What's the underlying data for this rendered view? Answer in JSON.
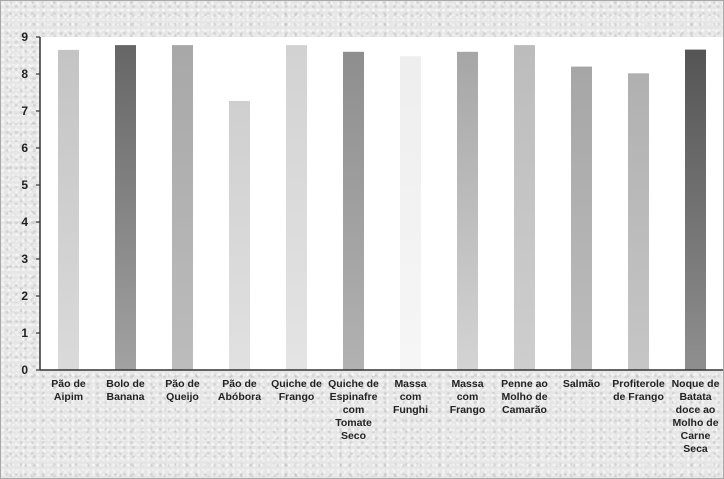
{
  "chart_data": {
    "type": "bar",
    "title": "",
    "xlabel": "",
    "ylabel": "",
    "ylim": [
      0,
      9
    ],
    "yticks": [
      0,
      1,
      2,
      3,
      4,
      5,
      6,
      7,
      8,
      9
    ],
    "grid": false,
    "categories": [
      [
        "Pão de",
        "Aipim"
      ],
      [
        "Bolo de",
        "Banana"
      ],
      [
        "Pão de",
        "Queijo"
      ],
      [
        "Pão de",
        "Abóbora"
      ],
      [
        "Quiche de",
        "Frango"
      ],
      [
        "Quiche de",
        "Espinafre",
        "com",
        "Tomate",
        "Seco"
      ],
      [
        "Massa",
        "com",
        "Funghi"
      ],
      [
        "Massa",
        "com",
        "Frango"
      ],
      [
        "Penne ao",
        "Molho de",
        "Camarão"
      ],
      [
        "Salmão"
      ],
      [
        "Profiterole",
        "de Frango"
      ],
      [
        "Noque de",
        "Batata",
        "doce ao",
        "Molho de",
        "Carne",
        "Seca"
      ]
    ],
    "values": [
      8.65,
      8.78,
      8.78,
      7.27,
      8.78,
      8.6,
      8.48,
      8.6,
      8.78,
      8.2,
      8.02,
      8.66
    ],
    "colors": [
      [
        "#c4c4c4",
        "#dadada"
      ],
      [
        "#666666",
        "#a2a2a2"
      ],
      [
        "#a8a8a8",
        "#bcbcbc"
      ],
      [
        "#cfcfcf",
        "#e1e1e1"
      ],
      [
        "#d2d2d2",
        "#e4e4e4"
      ],
      [
        "#8e8e8e",
        "#b2b2b2"
      ],
      [
        "#eeeeee",
        "#f6f6f6"
      ],
      [
        "#a6a6a6",
        "#d4d4d4"
      ],
      [
        "#bcbcbc",
        "#cecece"
      ],
      [
        "#a6a6a6",
        "#bdbdbd"
      ],
      [
        "#b0b0b0",
        "#c6c6c6"
      ],
      [
        "#555555",
        "#8f8f8f"
      ]
    ]
  }
}
